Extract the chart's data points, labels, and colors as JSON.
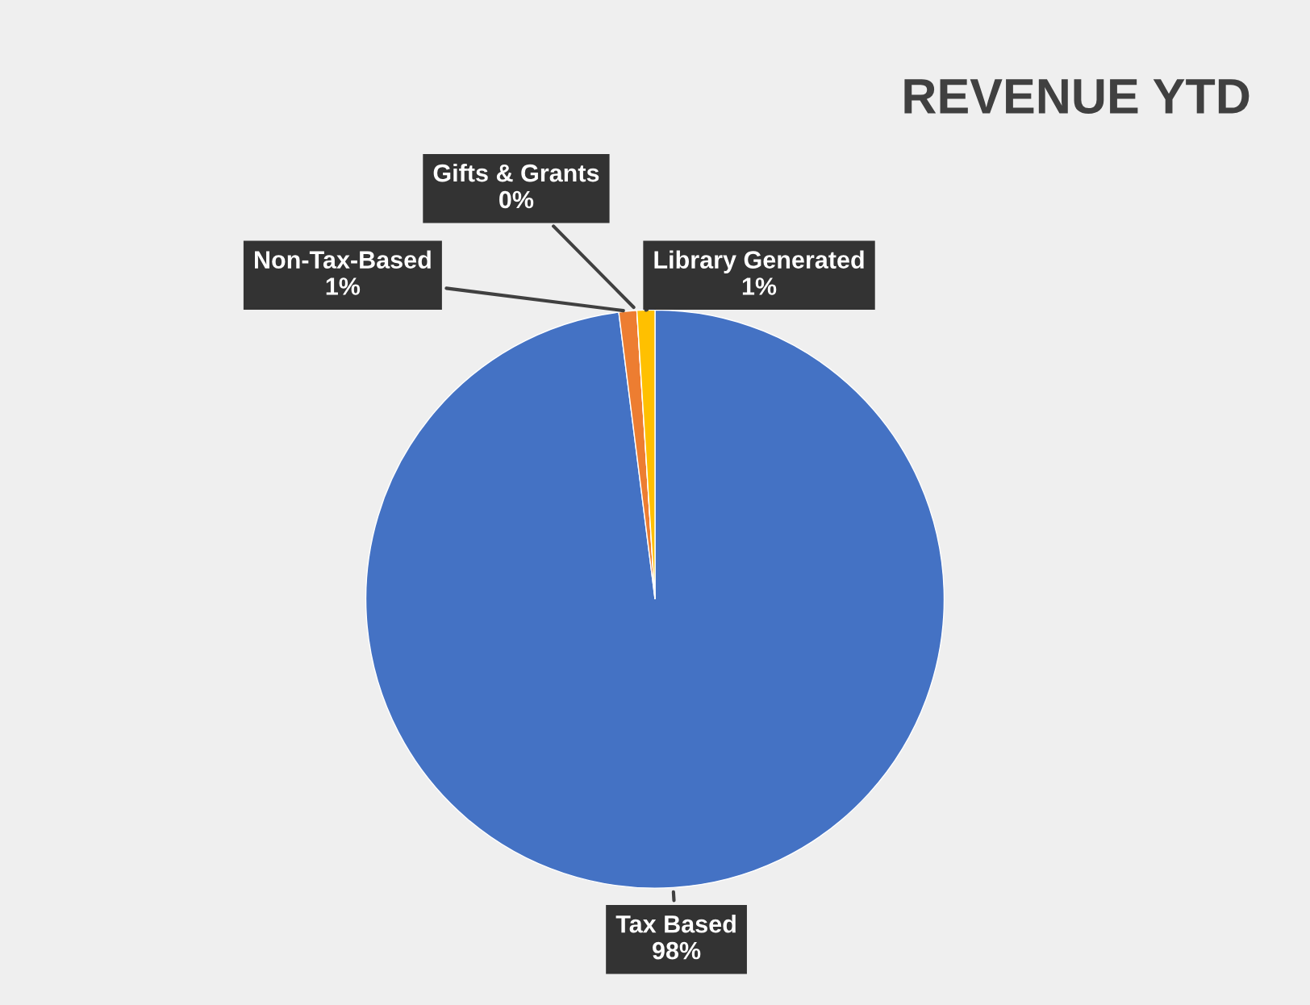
{
  "chart_data": {
    "type": "pie",
    "title": "REVENUE YTD",
    "categories": [
      "Tax Based",
      "Non-Tax-Based",
      "Gifts & Grants",
      "Library Generated"
    ],
    "values": [
      98,
      1,
      0,
      1
    ],
    "colors": [
      "#4472c4",
      "#ed7d31",
      "#a5a5a5",
      "#ffc000"
    ],
    "value_labels": [
      "98%",
      "1%",
      "0%",
      "1%"
    ],
    "legend": false
  }
}
